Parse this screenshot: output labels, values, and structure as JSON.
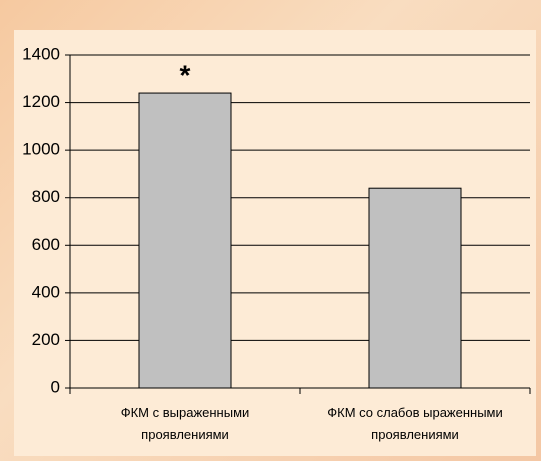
{
  "chart_data": {
    "type": "bar",
    "categories": [
      "ФКМ с выраженными проявлениями",
      "ФКМ со слабов ыраженными проявлениями"
    ],
    "values": [
      1240,
      840
    ],
    "color": "#c0c0c0",
    "ylim": [
      0,
      1400
    ],
    "yticks": [
      0,
      200,
      400,
      600,
      800,
      1000,
      1200,
      1400
    ],
    "grid": true,
    "annotation": "*"
  }
}
